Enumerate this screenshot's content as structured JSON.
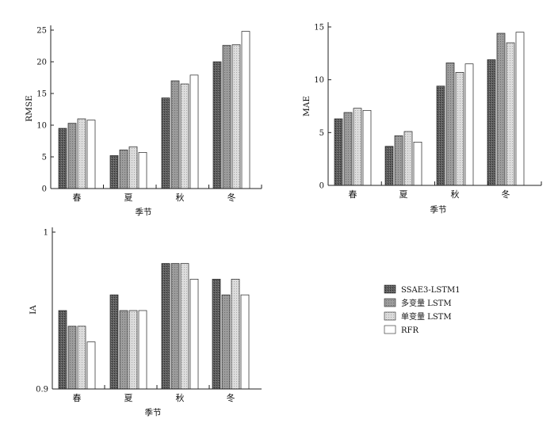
{
  "chart_data": [
    {
      "type": "bar",
      "ylabel": "RMSE",
      "xlabel": "季节",
      "categories": [
        "春",
        "夏",
        "秋",
        "冬"
      ],
      "ylim": [
        0,
        25
      ],
      "yticks": [
        "0",
        "5",
        "10",
        "15",
        "20",
        "25"
      ],
      "series": [
        {
          "name": "SSAE3-LSTM1",
          "values": [
            9.5,
            5.2,
            14.3,
            20.0
          ]
        },
        {
          "name": "多变量 LSTM",
          "values": [
            10.3,
            6.1,
            17.0,
            22.6
          ]
        },
        {
          "name": "单变量 LSTM",
          "values": [
            11.0,
            6.6,
            16.5,
            22.7
          ]
        },
        {
          "name": "RFR",
          "values": [
            10.8,
            5.7,
            17.9,
            24.8
          ]
        }
      ]
    },
    {
      "type": "bar",
      "ylabel": "MAE",
      "xlabel": "季节",
      "categories": [
        "春",
        "夏",
        "秋",
        "冬"
      ],
      "ylim": [
        0,
        15
      ],
      "yticks": [
        "0",
        "5",
        "10",
        "15"
      ],
      "series": [
        {
          "name": "SSAE3-LSTM1",
          "values": [
            6.3,
            3.7,
            9.4,
            11.9
          ]
        },
        {
          "name": "多变量 LSTM",
          "values": [
            6.9,
            4.7,
            11.6,
            14.4
          ]
        },
        {
          "name": "单变量 LSTM",
          "values": [
            7.3,
            5.1,
            10.7,
            13.5
          ]
        },
        {
          "name": "RFR",
          "values": [
            7.1,
            4.1,
            11.5,
            14.5
          ]
        }
      ]
    },
    {
      "type": "bar",
      "ylabel": "IA",
      "xlabel": "季节",
      "categories": [
        "春",
        "夏",
        "秋",
        "冬"
      ],
      "ylim": [
        0.9,
        1
      ],
      "yticks": [
        "0.9",
        "1"
      ],
      "series": [
        {
          "name": "SSAE3-LSTM1",
          "values": [
            0.95,
            0.96,
            0.98,
            0.97
          ]
        },
        {
          "name": "多变量 LSTM",
          "values": [
            0.94,
            0.95,
            0.98,
            0.96
          ]
        },
        {
          "name": "单变量 LSTM",
          "values": [
            0.94,
            0.95,
            0.98,
            0.97
          ]
        },
        {
          "name": "RFR",
          "values": [
            0.93,
            0.95,
            0.97,
            0.96
          ]
        }
      ]
    }
  ],
  "legend": {
    "placement": "right of IA panel",
    "entries": [
      "SSAE3-LSTM1",
      "多变量 LSTM",
      "单变量 LSTM",
      "RFR"
    ]
  },
  "series_styles": [
    {
      "fill": "#5e5e5e",
      "pattern": "dark-cross"
    },
    {
      "fill": "#9a9a9a",
      "pattern": "medium-dots"
    },
    {
      "fill": "#d2d2d2",
      "pattern": "light-dots"
    },
    {
      "fill": "#ffffff",
      "pattern": "none"
    }
  ]
}
